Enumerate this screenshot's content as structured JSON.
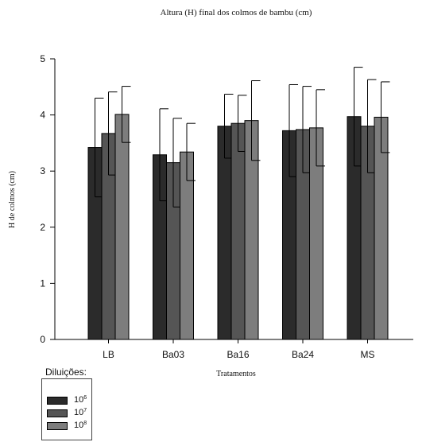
{
  "chart_data": {
    "type": "bar",
    "title": "Altura (H) final dos colmos de bambu (cm)",
    "xlabel": "Tratamentos",
    "ylabel": "H de colmos (cm)",
    "categories": [
      "LB",
      "Ba03",
      "Ba16",
      "Ba24",
      "MS"
    ],
    "ylim": [
      0,
      5
    ],
    "yticks": [
      "0",
      "1",
      "2",
      "3",
      "4",
      "5"
    ],
    "grid": false,
    "legend_title": "Diluições:",
    "legend_placement": "bottom-left",
    "series": [
      {
        "name": "10^6",
        "label_base": "10",
        "label_exp": "6",
        "color": "#2b2b2b",
        "values": [
          3.42,
          3.29,
          3.8,
          3.72,
          3.97
        ],
        "errors": [
          0.88,
          0.82,
          0.57,
          0.82,
          0.88
        ]
      },
      {
        "name": "10^7",
        "label_base": "10",
        "label_exp": "7",
        "color": "#555555",
        "values": [
          3.67,
          3.15,
          3.85,
          3.74,
          3.8
        ],
        "errors": [
          0.74,
          0.79,
          0.5,
          0.77,
          0.83
        ]
      },
      {
        "name": "10^8",
        "label_base": "10",
        "label_exp": "8",
        "color": "#7d7d7d",
        "values": [
          4.01,
          3.34,
          3.9,
          3.77,
          3.96
        ],
        "errors": [
          0.5,
          0.51,
          0.71,
          0.68,
          0.63
        ]
      }
    ]
  }
}
